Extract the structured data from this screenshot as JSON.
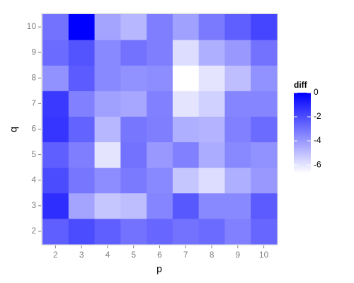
{
  "chart_data": {
    "type": "heatmap",
    "x_label": "p",
    "y_label": "q",
    "legend_title": "diff",
    "x_categories": [
      "2",
      "3",
      "4",
      "5",
      "6",
      "7",
      "8",
      "9",
      "10"
    ],
    "y_categories": [
      "2",
      "3",
      "4",
      "5",
      "6",
      "7",
      "8",
      "9",
      "10"
    ],
    "values": [
      [
        -2.5,
        -2.0,
        -2.5,
        -3.0,
        -2.7,
        -3.0,
        -2.8,
        -3.4,
        -2.7
      ],
      [
        -1.2,
        -4.3,
        -5.2,
        -5.0,
        -3.5,
        -2.3,
        -3.6,
        -3.6,
        -2.4
      ],
      [
        -2.0,
        -3.1,
        -3.7,
        -3.2,
        -3.6,
        -5.2,
        -5.8,
        -4.6,
        -4.0
      ],
      [
        -2.5,
        -3.3,
        -6.0,
        -3.0,
        -4.0,
        -3.4,
        -4.5,
        -3.6,
        -3.8
      ],
      [
        -1.4,
        -2.6,
        -4.8,
        -3.1,
        -3.3,
        -4.6,
        -4.7,
        -3.4,
        -2.8
      ],
      [
        -1.5,
        -3.4,
        -4.2,
        -4.4,
        -3.4,
        -6.0,
        -5.5,
        -3.5,
        -3.5
      ],
      [
        -3.8,
        -2.4,
        -3.6,
        -3.8,
        -3.7,
        -6.7,
        -6.0,
        -5.0,
        -3.8
      ],
      [
        -2.8,
        -2.2,
        -3.6,
        -3.0,
        -3.3,
        -5.8,
        -4.6,
        -4.0,
        -3.0
      ],
      [
        -3.0,
        0.0,
        -4.3,
        -4.8,
        -3.3,
        -4.2,
        -3.2,
        -2.5,
        -1.8
      ]
    ],
    "color_low": "#ffffff",
    "color_high": "#0000ff",
    "colorlim": [
      -6.7,
      0
    ],
    "colorticks": [
      0,
      -2,
      -4,
      -6
    ]
  }
}
